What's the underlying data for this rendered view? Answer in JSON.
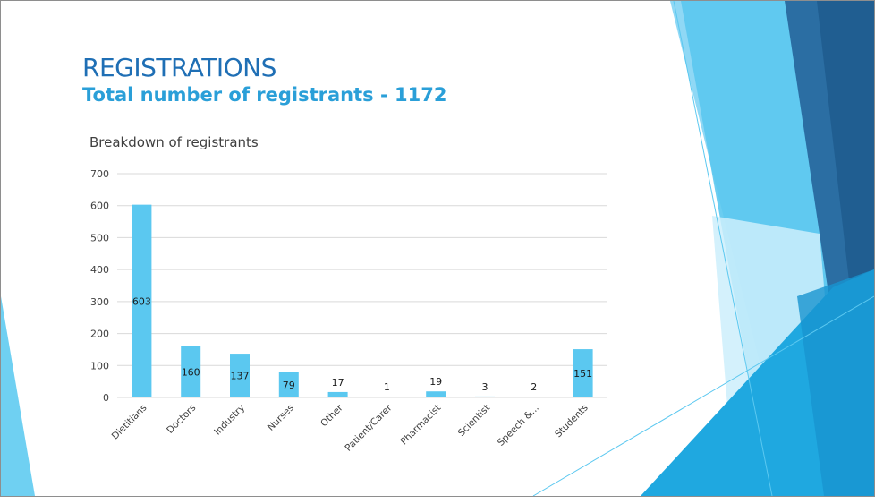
{
  "slide": {
    "title": "REGISTRATIONS",
    "subtitle": "Total number of registrants - 1172"
  },
  "theme": {
    "title_color": "#1f6fb5",
    "subtitle_color": "#2a9fd8",
    "bar_color": "#5bc8f0",
    "grid_color": "#d9d9d9",
    "text_color": "#404040"
  },
  "chart_data": {
    "type": "bar",
    "title": "Breakdown of registrants",
    "xlabel": "",
    "ylabel": "",
    "categories": [
      "Dietitians",
      "Doctors",
      "Industry",
      "Nurses",
      "Other",
      "Patient/Carer",
      "Pharmacist",
      "Scientist",
      "Speech &...",
      "Students"
    ],
    "values": [
      603,
      160,
      137,
      79,
      17,
      1,
      19,
      3,
      2,
      151
    ],
    "data_labels": [
      "603",
      "160",
      "137",
      "79",
      "17",
      "1",
      "19",
      "3",
      "2",
      "151"
    ],
    "ylim": [
      0,
      700
    ],
    "yticks": [
      "0",
      "100",
      "200",
      "300",
      "400",
      "500",
      "600",
      "700"
    ],
    "grid": true,
    "legend": "none"
  }
}
